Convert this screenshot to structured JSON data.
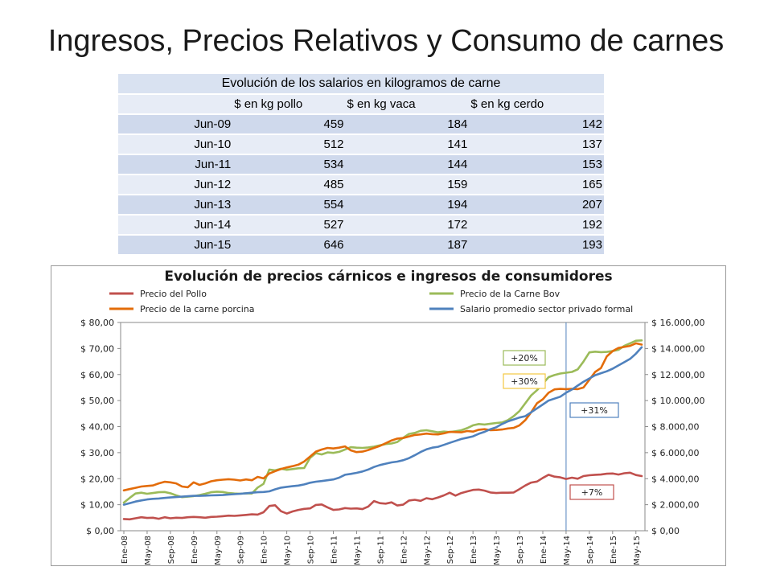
{
  "slide_title": "Ingresos, Precios Relativos y Consumo de carnes",
  "table": {
    "title": "Evolución de  los salarios en kilogramos de carne",
    "columns": [
      "",
      "$ en kg pollo",
      "$ en kg vaca",
      "$ en kg cerdo"
    ],
    "rows": [
      {
        "label": "Jun-09",
        "values": [
          "459",
          "184",
          "142"
        ]
      },
      {
        "label": "Jun-10",
        "values": [
          "512",
          "141",
          "137"
        ]
      },
      {
        "label": "Jun-11",
        "values": [
          "534",
          "144",
          "153"
        ]
      },
      {
        "label": "Jun-12",
        "values": [
          "485",
          "159",
          "165"
        ]
      },
      {
        "label": "Jun-13",
        "values": [
          "554",
          "194",
          "207"
        ]
      },
      {
        "label": "Jun-14",
        "values": [
          "527",
          "172",
          "192"
        ]
      },
      {
        "label": "Jun-15",
        "values": [
          "646",
          "187",
          "193"
        ]
      }
    ]
  },
  "chart_data": {
    "type": "line",
    "title": "Evolución de precios cárnicos e ingresos de consumidores",
    "legend_position": "top",
    "grid": false,
    "x": [
      "Ene-08",
      "Feb-08",
      "Mar-08",
      "Abr-08",
      "May-08",
      "Jun-08",
      "Jul-08",
      "Ago-08",
      "Sep-08",
      "Oct-08",
      "Nov-08",
      "Dic-08",
      "Ene-09",
      "Feb-09",
      "Mar-09",
      "Abr-09",
      "May-09",
      "Jun-09",
      "Jul-09",
      "Ago-09",
      "Sep-09",
      "Oct-09",
      "Nov-09",
      "Dic-09",
      "Ene-10",
      "Feb-10",
      "Mar-10",
      "Abr-10",
      "May-10",
      "Jun-10",
      "Jul-10",
      "Ago-10",
      "Sep-10",
      "Oct-10",
      "Nov-10",
      "Dic-10",
      "Ene-11",
      "Feb-11",
      "Mar-11",
      "Abr-11",
      "May-11",
      "Jun-11",
      "Jul-11",
      "Ago-11",
      "Sep-11",
      "Oct-11",
      "Nov-11",
      "Dic-11",
      "Ene-12",
      "Feb-12",
      "Mar-12",
      "Abr-12",
      "May-12",
      "Jun-12",
      "Jul-12",
      "Ago-12",
      "Sep-12",
      "Oct-12",
      "Nov-12",
      "Dic-12",
      "Ene-13",
      "Feb-13",
      "Mar-13",
      "Abr-13",
      "May-13",
      "Jun-13",
      "Jul-13",
      "Ago-13",
      "Sep-13",
      "Oct-13",
      "Nov-13",
      "Dic-13",
      "Ene-14",
      "Feb-14",
      "Mar-14",
      "Abr-14",
      "May-14",
      "Jun-14",
      "Jul-14",
      "Ago-14",
      "Sep-14",
      "Oct-14",
      "Nov-14",
      "Dic-14",
      "Ene-15",
      "Feb-15",
      "Mar-15",
      "Abr-15",
      "May-15",
      "Jun-15"
    ],
    "x_tick_labels": [
      "Ene-08",
      "May-08",
      "Sep-08",
      "Ene-09",
      "May-09",
      "Sep-09",
      "Ene-10",
      "May-10",
      "Sep-10",
      "Ene-11",
      "May-11",
      "Sep-11",
      "Ene-12",
      "May-12",
      "Sep-12",
      "Ene-13",
      "May-13",
      "Sep-13",
      "Ene-14",
      "May-14",
      "Sep-14",
      "Ene-15",
      "May-15"
    ],
    "y_left": {
      "min": 0,
      "max": 80,
      "ticks": [
        "$ 0,00",
        "$ 10,00",
        "$ 20,00",
        "$ 30,00",
        "$ 40,00",
        "$ 50,00",
        "$ 60,00",
        "$ 70,00",
        "$ 80,00"
      ]
    },
    "y_right": {
      "min": 0,
      "max": 16000,
      "ticks": [
        "$ 0,00",
        "$ 2.000,00",
        "$ 4.000,00",
        "$ 6.000,00",
        "$ 8.000,00",
        "$ 10.000,00",
        "$ 12.000,00",
        "$ 14.000,00",
        "$ 16.000,00"
      ]
    },
    "reference_line_x": "May-14",
    "series": [
      {
        "name": "Precio del Pollo",
        "axis": "left",
        "color": "#c0504d",
        "values": [
          4.5,
          4.4,
          4.8,
          5.2,
          4.9,
          5.0,
          4.6,
          5.2,
          4.8,
          5.0,
          4.9,
          5.2,
          5.3,
          5.2,
          5.0,
          5.3,
          5.4,
          5.6,
          5.8,
          5.7,
          5.9,
          6.1,
          6.3,
          6.2,
          7.1,
          9.5,
          9.8,
          7.5,
          6.6,
          7.4,
          8.0,
          8.4,
          8.6,
          9.9,
          10.1,
          9.0,
          8.0,
          8.2,
          8.7,
          8.5,
          8.6,
          8.3,
          9.3,
          11.4,
          10.6,
          10.4,
          10.9,
          9.7,
          10.0,
          11.6,
          11.9,
          11.5,
          12.5,
          12.1,
          12.8,
          13.6,
          14.6,
          13.5,
          14.5,
          15.1,
          15.7,
          15.8,
          15.4,
          14.7,
          14.5,
          14.6,
          14.6,
          14.7,
          16.0,
          17.4,
          18.5,
          18.9,
          20.3,
          21.5,
          20.8,
          20.5,
          19.9,
          20.4,
          20.0,
          21.0,
          21.3,
          21.5,
          21.6,
          21.9,
          22.0,
          21.6,
          22.1,
          22.3,
          21.4,
          21.0
        ]
      },
      {
        "name": "Precio de la Carne Bov",
        "axis": "left",
        "color": "#9bbb59",
        "values": [
          10.8,
          12.6,
          14.3,
          14.6,
          14.2,
          14.5,
          14.8,
          14.9,
          14.4,
          13.6,
          12.9,
          13.1,
          13.3,
          13.7,
          14.2,
          14.8,
          15.0,
          14.9,
          14.5,
          14.3,
          14.2,
          14.4,
          14.3,
          16.6,
          18.0,
          23.5,
          23.2,
          23.8,
          23.4,
          23.7,
          24.0,
          24.1,
          28.0,
          29.8,
          29.3,
          30.1,
          29.9,
          30.3,
          31.2,
          32.1,
          31.9,
          31.8,
          32.0,
          32.3,
          32.8,
          33.3,
          33.5,
          34.1,
          35.7,
          37.2,
          37.6,
          38.4,
          38.6,
          38.2,
          37.8,
          38.1,
          37.9,
          38.2,
          38.6,
          39.4,
          40.5,
          41.0,
          40.8,
          41.1,
          41.4,
          41.6,
          42.5,
          44.0,
          46.0,
          49.0,
          52.0,
          54.0,
          56.5,
          59.0,
          59.8,
          60.4,
          60.7,
          61.0,
          62.0,
          65.0,
          68.5,
          68.8,
          68.6,
          68.7,
          69.0,
          69.5,
          71.0,
          72.0,
          73.0,
          73.1
        ]
      },
      {
        "name": "Precio de la carne porcina",
        "axis": "left",
        "color": "#e36c0a",
        "values": [
          15.5,
          16.0,
          16.5,
          17.0,
          17.2,
          17.4,
          18.2,
          18.8,
          18.6,
          18.2,
          17.0,
          16.7,
          18.6,
          17.6,
          18.2,
          19.0,
          19.4,
          19.6,
          19.8,
          19.6,
          19.3,
          19.7,
          19.4,
          20.7,
          20.1,
          22.0,
          22.9,
          23.7,
          24.3,
          24.8,
          25.4,
          26.6,
          28.5,
          30.4,
          31.2,
          31.8,
          31.6,
          31.9,
          32.4,
          30.9,
          30.2,
          30.4,
          31.0,
          31.8,
          32.6,
          33.6,
          34.7,
          35.4,
          35.6,
          36.2,
          36.8,
          37.0,
          37.3,
          37.1,
          37.0,
          37.4,
          38.0,
          37.9,
          37.8,
          38.3,
          38.1,
          38.8,
          39.0,
          38.6,
          38.7,
          38.9,
          39.3,
          39.5,
          40.5,
          42.5,
          45.5,
          49.0,
          50.5,
          53.0,
          54.3,
          54.5,
          54.4,
          54.5,
          54.4,
          55.0,
          58.0,
          61.0,
          62.5,
          67.0,
          69.0,
          70.2,
          70.6,
          71.0,
          72.0,
          71.5
        ]
      },
      {
        "name": "Salario promedio sector privado formal",
        "axis": "right",
        "color": "#4f81bd",
        "values": [
          2000,
          2120,
          2240,
          2330,
          2400,
          2450,
          2480,
          2520,
          2560,
          2590,
          2620,
          2650,
          2680,
          2680,
          2700,
          2720,
          2730,
          2740,
          2780,
          2810,
          2840,
          2880,
          2920,
          2960,
          2980,
          3030,
          3180,
          3310,
          3370,
          3420,
          3470,
          3560,
          3690,
          3770,
          3820,
          3880,
          3940,
          4080,
          4300,
          4370,
          4450,
          4550,
          4700,
          4900,
          5050,
          5150,
          5250,
          5310,
          5420,
          5580,
          5800,
          6050,
          6250,
          6380,
          6450,
          6600,
          6750,
          6900,
          7050,
          7150,
          7250,
          7450,
          7600,
          7800,
          7950,
          8200,
          8400,
          8550,
          8700,
          8800,
          9100,
          9400,
          9700,
          10000,
          10150,
          10300,
          10600,
          10850,
          11150,
          11450,
          11700,
          11950,
          12100,
          12250,
          12450,
          12700,
          12950,
          13200,
          13600,
          14100
        ]
      }
    ],
    "annotations": [
      {
        "text": "+20%",
        "color": "#9bbb59"
      },
      {
        "text": "+30%",
        "color": "#f4c842"
      },
      {
        "text": "+31%",
        "color": "#4f81bd"
      },
      {
        "text": "+7%",
        "color": "#c0504d"
      }
    ]
  }
}
